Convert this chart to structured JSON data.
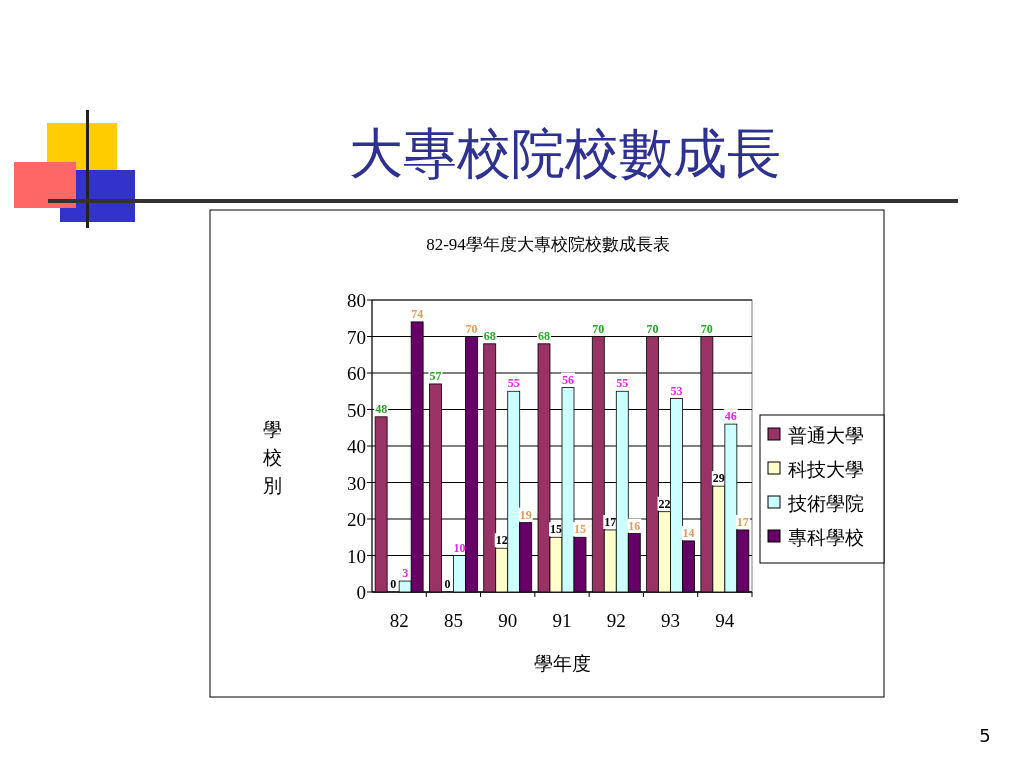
{
  "chart_data": {
    "type": "bar",
    "title": "大專校院校數成長",
    "subtitle": "82-94學年度大專校院校數成長表",
    "xlabel": "學年度",
    "ylabel": "學校別",
    "categories": [
      "82",
      "85",
      "90",
      "91",
      "92",
      "93",
      "94"
    ],
    "series": [
      {
        "name": "普通大學",
        "color": "#993366",
        "values": [
          48,
          57,
          68,
          68,
          70,
          70,
          70
        ]
      },
      {
        "name": "科技大學",
        "color": "#ffffcc",
        "values": [
          0,
          0,
          12,
          15,
          17,
          22,
          29
        ]
      },
      {
        "name": "技術學院",
        "color": "#ccffff",
        "values": [
          3,
          10,
          55,
          56,
          55,
          53,
          46
        ]
      },
      {
        "name": "專科學校",
        "color": "#660066",
        "values": [
          74,
          70,
          19,
          15,
          16,
          14,
          17
        ]
      }
    ],
    "ylim": [
      0,
      80
    ],
    "yticks": [
      0,
      10,
      20,
      30,
      40,
      50,
      60,
      70,
      80
    ],
    "grid": "y",
    "legend": "right",
    "data_labels": true,
    "annotations": [
      "5"
    ]
  }
}
